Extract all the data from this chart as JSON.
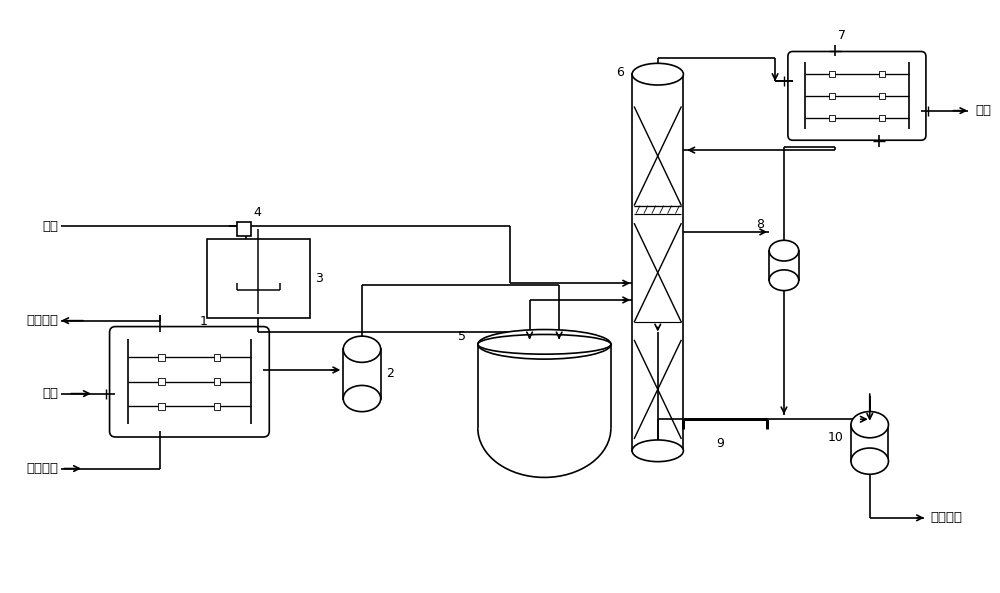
{
  "background_color": "#ffffff",
  "line_color": "#000000",
  "line_width": 1.2,
  "labels": {
    "huang_lin": "黄磷",
    "re_shui_hui": "热水回水",
    "ye_lv": "液氯",
    "re_shui_shang": "热水上水",
    "wei_qi": "尾气",
    "san_lv_hua_lin": "三氯化磷",
    "num1": "1",
    "num2": "2",
    "num3": "3",
    "num4": "4",
    "num5": "5",
    "num6": "6",
    "num7": "7",
    "num8": "8",
    "num9": "9",
    "num10": "10"
  }
}
